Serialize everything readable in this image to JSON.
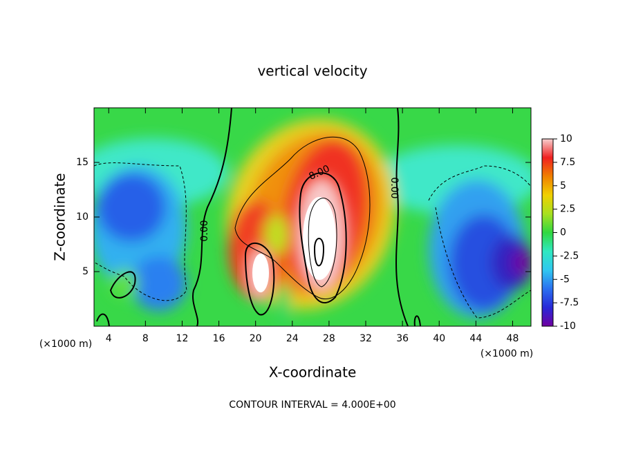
{
  "chart_data": {
    "type": "contour",
    "title": "vertical velocity",
    "xlabel": "X-coordinate",
    "ylabel": "Z-coordinate",
    "x_unit_label": "(×1000 m)",
    "footer": "CONTOUR INTERVAL = 4.000E+00",
    "contour_labels": [
      "0.00",
      "0.00",
      "8.00"
    ],
    "xlim": [
      2.4,
      50
    ],
    "xticks": [
      4,
      8,
      12,
      16,
      20,
      24,
      28,
      32,
      36,
      40,
      44,
      48
    ],
    "ylim": [
      0,
      20
    ],
    "yticks": [
      5,
      10,
      15
    ],
    "colorbar_lim": [
      -10,
      10
    ],
    "colorbar_ticks": [
      10,
      7.5,
      5,
      2.5,
      0,
      -2.5,
      -5,
      -7.5,
      -10
    ],
    "colorbar_colors": [
      "#7000a0",
      "#2828d8",
      "#2a70f0",
      "#30c8f0",
      "#30e8c0",
      "#30d840",
      "#a8e020",
      "#f0d000",
      "#f08000",
      "#f02020",
      "#f8d0d0"
    ]
  }
}
